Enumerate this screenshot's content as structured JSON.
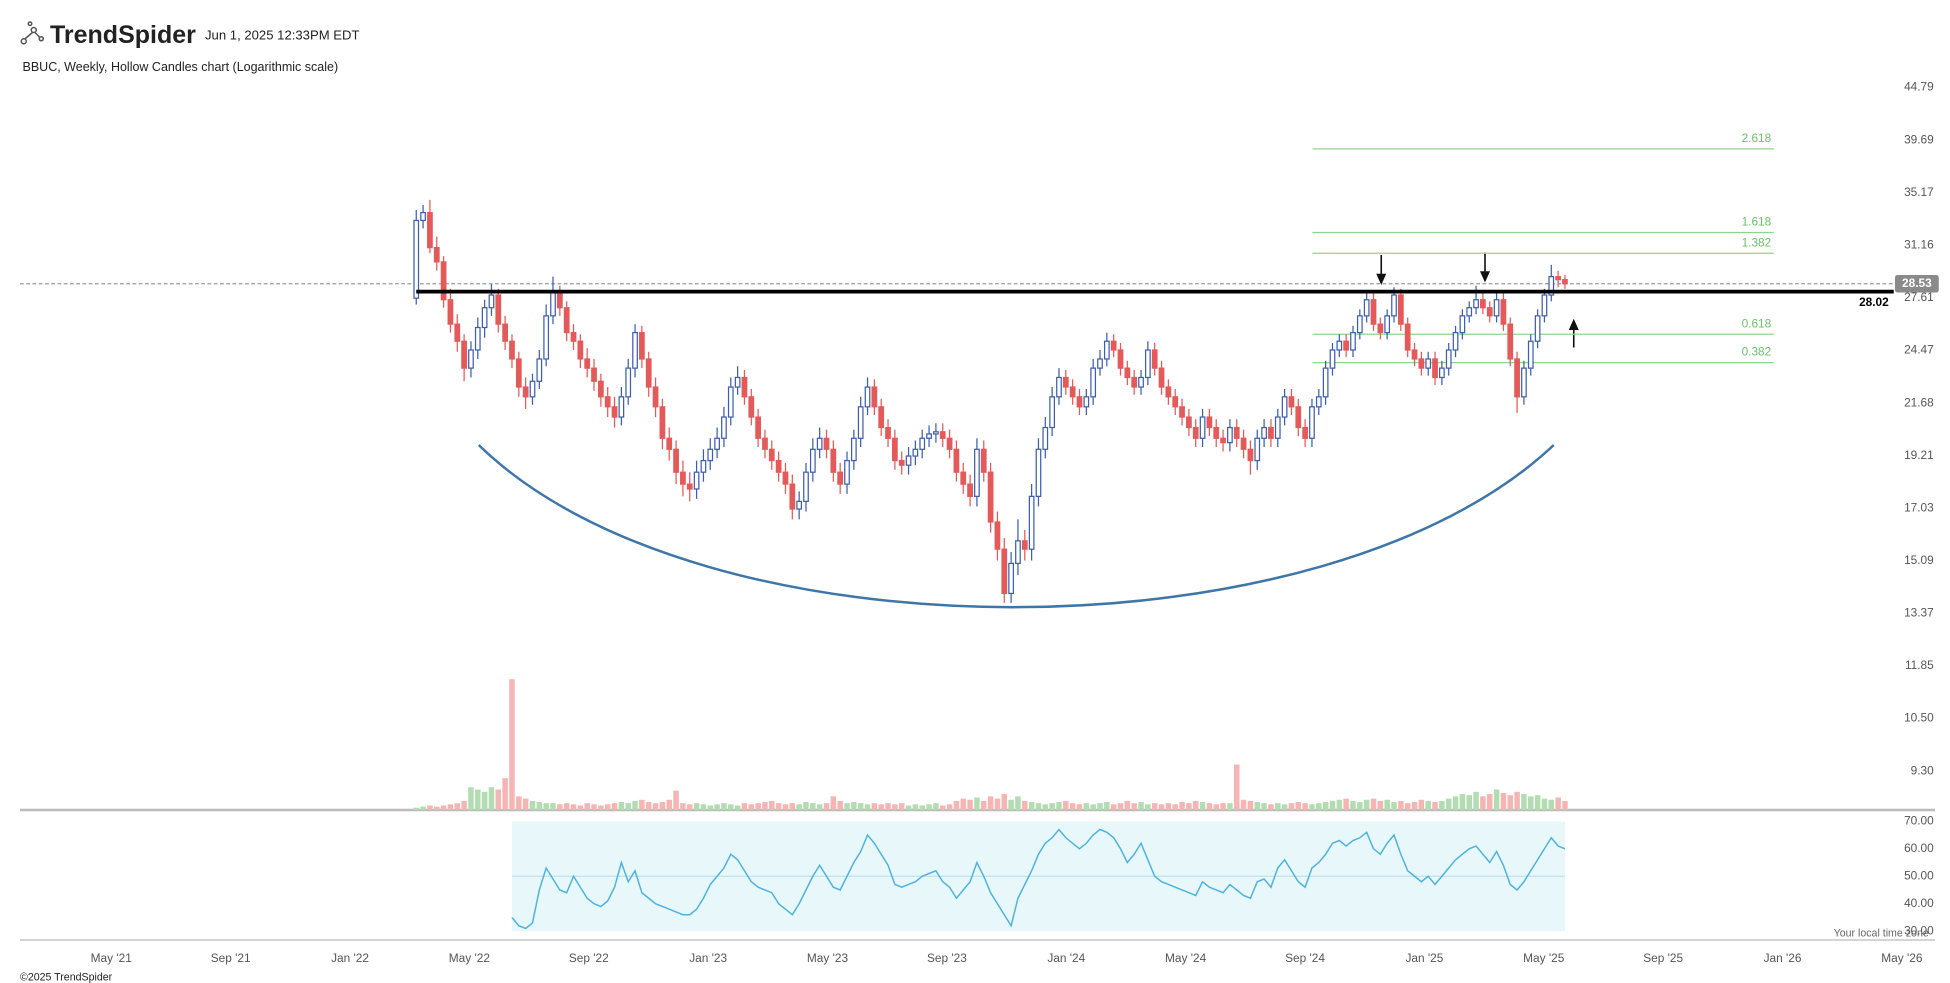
{
  "chart_data": {
    "type": "candlestick",
    "brand": "TrendSpider",
    "timestamp": "Jun 1, 2025 12:33PM EDT",
    "title": "BBUC, Weekly, Hollow Candles chart (Logarithmic scale)",
    "copyright": "©2025 TrendSpider",
    "timezone_note": "Your local time zone",
    "log_scale": true,
    "up_color": "#3f5fae",
    "down_color": "#e45a5a",
    "volume_up_color": "#b3dcb3",
    "volume_down_color": "#f5b5b5",
    "rsi_color": "#4fb3e0",
    "rsi_band_color": "#e8f7f9",
    "ylim": [
      8.51,
      46.1
    ],
    "yticks": [
      44.79,
      39.69,
      35.17,
      31.16,
      27.61,
      24.47,
      21.68,
      19.21,
      17.03,
      15.09,
      13.37,
      11.85,
      {
        "value": 10.5,
        "label": "10.50"
      },
      {
        "value": 9.3,
        "label": "9.30"
      }
    ],
    "rsi_ylim": [
      26.8,
      73.2
    ],
    "rsi_yticks": [
      {
        "value": 70,
        "label": "70.00"
      },
      {
        "value": 60,
        "label": "60.00"
      },
      {
        "value": 50,
        "label": "50.00"
      },
      {
        "value": 40,
        "label": "40.00"
      },
      {
        "value": 30,
        "label": "30.00"
      }
    ],
    "rsi_band": [
      30,
      70
    ],
    "rsi_midline": 50,
    "xticks": [
      "May '21",
      "Sep '21",
      "Jan '22",
      "May '22",
      "Sep '22",
      "Jan '23",
      "May '23",
      "Sep '23",
      "Jan '24",
      "May '24",
      "Sep '24",
      "Jan '25",
      "May '25",
      "Sep '25",
      "Jan '26",
      "May '26"
    ],
    "resistance": 28.02,
    "last_price": 28.53,
    "fib_levels": [
      {
        "level": 2.618,
        "price": 38.9
      },
      {
        "level": 1.618,
        "price": 32.1
      },
      {
        "level": 1.382,
        "price": 30.6
      },
      {
        "level": 0.618,
        "price": 25.4
      },
      {
        "level": 0.382,
        "price": 23.8
      }
    ],
    "candles": [
      [
        27.6,
        33.8,
        27.2,
        33.0
      ],
      [
        33.0,
        34.2,
        32.4,
        33.6
      ],
      [
        33.6,
        34.6,
        30.6,
        31.0
      ],
      [
        31.0,
        31.8,
        29.4,
        30.0
      ],
      [
        30.0,
        30.4,
        27.0,
        27.5
      ],
      [
        27.5,
        28.2,
        25.5,
        26.0
      ],
      [
        26.0,
        26.6,
        24.4,
        25.0
      ],
      [
        25.0,
        25.4,
        22.8,
        23.5
      ],
      [
        23.5,
        25.0,
        23.0,
        24.5
      ],
      [
        24.5,
        26.4,
        24.0,
        25.8
      ],
      [
        25.8,
        27.5,
        25.2,
        27.0
      ],
      [
        27.0,
        28.5,
        26.5,
        27.8
      ],
      [
        27.8,
        28.2,
        25.5,
        26.0
      ],
      [
        26.0,
        26.5,
        24.5,
        25.0
      ],
      [
        25.0,
        25.4,
        23.5,
        24.0
      ],
      [
        24.0,
        24.4,
        22.0,
        22.5
      ],
      [
        22.5,
        23.0,
        21.4,
        22.0
      ],
      [
        22.0,
        23.2,
        21.6,
        22.8
      ],
      [
        22.8,
        24.5,
        22.4,
        24.0
      ],
      [
        24.0,
        27.2,
        23.6,
        26.5
      ],
      [
        26.5,
        29.0,
        26.0,
        28.0
      ],
      [
        28.0,
        28.4,
        26.5,
        27.0
      ],
      [
        27.0,
        27.4,
        25.0,
        25.5
      ],
      [
        25.5,
        26.0,
        24.5,
        25.0
      ],
      [
        25.0,
        25.4,
        23.5,
        24.0
      ],
      [
        24.0,
        24.6,
        23.0,
        23.5
      ],
      [
        23.5,
        24.0,
        22.3,
        22.8
      ],
      [
        22.8,
        23.2,
        21.5,
        22.0
      ],
      [
        22.0,
        22.5,
        21.0,
        21.5
      ],
      [
        21.5,
        22.0,
        20.5,
        21.0
      ],
      [
        21.0,
        22.5,
        20.6,
        22.0
      ],
      [
        22.0,
        24.0,
        21.6,
        23.5
      ],
      [
        23.5,
        26.0,
        23.0,
        25.5
      ],
      [
        25.5,
        25.9,
        23.5,
        24.0
      ],
      [
        24.0,
        24.4,
        22.0,
        22.5
      ],
      [
        22.5,
        23.0,
        21.0,
        21.5
      ],
      [
        21.5,
        21.9,
        19.5,
        20.0
      ],
      [
        20.0,
        20.5,
        19.0,
        19.5
      ],
      [
        19.5,
        19.9,
        18.0,
        18.5
      ],
      [
        18.5,
        19.0,
        17.5,
        18.0
      ],
      [
        18.0,
        18.5,
        17.3,
        17.8
      ],
      [
        17.8,
        19.0,
        17.4,
        18.5
      ],
      [
        18.5,
        19.5,
        18.1,
        19.0
      ],
      [
        19.0,
        20.0,
        18.6,
        19.5
      ],
      [
        19.5,
        20.5,
        19.1,
        20.0
      ],
      [
        20.0,
        21.5,
        19.6,
        21.0
      ],
      [
        21.0,
        23.0,
        20.6,
        22.5
      ],
      [
        22.5,
        23.6,
        22.1,
        23.0
      ],
      [
        23.0,
        23.4,
        21.6,
        22.0
      ],
      [
        22.0,
        22.4,
        20.6,
        21.0
      ],
      [
        21.0,
        21.4,
        19.6,
        20.0
      ],
      [
        20.0,
        20.4,
        19.1,
        19.5
      ],
      [
        19.5,
        19.9,
        18.6,
        19.0
      ],
      [
        19.0,
        19.4,
        18.1,
        18.5
      ],
      [
        18.5,
        18.9,
        17.6,
        18.0
      ],
      [
        18.0,
        18.4,
        16.6,
        17.0
      ],
      [
        17.0,
        17.7,
        16.6,
        17.3
      ],
      [
        17.3,
        18.9,
        16.9,
        18.5
      ],
      [
        18.5,
        20.0,
        18.1,
        19.5
      ],
      [
        19.5,
        20.5,
        19.1,
        20.0
      ],
      [
        20.0,
        20.4,
        19.1,
        19.5
      ],
      [
        19.5,
        19.9,
        18.1,
        18.5
      ],
      [
        18.5,
        18.9,
        17.6,
        18.0
      ],
      [
        18.0,
        19.4,
        17.6,
        19.0
      ],
      [
        19.0,
        20.4,
        18.6,
        20.0
      ],
      [
        20.0,
        22.0,
        19.6,
        21.5
      ],
      [
        21.5,
        23.0,
        21.1,
        22.5
      ],
      [
        22.5,
        22.9,
        21.1,
        21.5
      ],
      [
        21.5,
        21.9,
        20.1,
        20.5
      ],
      [
        20.5,
        20.9,
        19.6,
        20.0
      ],
      [
        20.0,
        20.4,
        18.6,
        19.0
      ],
      [
        19.0,
        19.4,
        18.4,
        18.8
      ],
      [
        18.8,
        19.6,
        18.4,
        19.2
      ],
      [
        19.2,
        19.9,
        18.8,
        19.5
      ],
      [
        19.5,
        20.4,
        19.1,
        20.0
      ],
      [
        20.0,
        20.6,
        19.6,
        20.2
      ],
      [
        20.2,
        20.7,
        19.8,
        20.3
      ],
      [
        20.3,
        20.7,
        19.6,
        20.0
      ],
      [
        20.0,
        20.4,
        19.1,
        19.5
      ],
      [
        19.5,
        19.9,
        18.1,
        18.5
      ],
      [
        18.5,
        18.9,
        17.6,
        18.0
      ],
      [
        18.0,
        18.4,
        17.1,
        17.5
      ],
      [
        17.5,
        20.0,
        17.1,
        19.5
      ],
      [
        19.5,
        19.9,
        18.1,
        18.5
      ],
      [
        18.5,
        18.9,
        16.1,
        16.5
      ],
      [
        16.5,
        16.9,
        15.1,
        15.5
      ],
      [
        15.5,
        15.9,
        13.7,
        14.0
      ],
      [
        14.0,
        15.4,
        13.7,
        15.0
      ],
      [
        15.0,
        16.6,
        14.6,
        15.8
      ],
      [
        15.8,
        16.2,
        15.1,
        15.5
      ],
      [
        15.5,
        18.0,
        15.1,
        17.5
      ],
      [
        17.5,
        20.0,
        17.1,
        19.5
      ],
      [
        19.5,
        21.0,
        19.1,
        20.5
      ],
      [
        20.5,
        22.5,
        20.1,
        22.0
      ],
      [
        22.0,
        23.5,
        21.6,
        23.0
      ],
      [
        23.0,
        23.4,
        22.1,
        22.5
      ],
      [
        22.5,
        22.9,
        21.6,
        22.0
      ],
      [
        22.0,
        22.4,
        21.1,
        21.5
      ],
      [
        21.5,
        22.4,
        21.1,
        22.0
      ],
      [
        22.0,
        24.0,
        21.6,
        23.5
      ],
      [
        23.5,
        24.5,
        23.1,
        24.0
      ],
      [
        24.0,
        25.5,
        23.6,
        25.0
      ],
      [
        25.0,
        25.4,
        24.1,
        24.5
      ],
      [
        24.5,
        24.9,
        23.1,
        23.5
      ],
      [
        23.5,
        23.9,
        22.6,
        23.0
      ],
      [
        23.0,
        23.4,
        22.1,
        22.5
      ],
      [
        22.5,
        23.4,
        22.1,
        23.0
      ],
      [
        23.0,
        25.0,
        22.6,
        24.5
      ],
      [
        24.5,
        24.9,
        23.1,
        23.5
      ],
      [
        23.5,
        23.9,
        22.1,
        22.5
      ],
      [
        22.5,
        22.9,
        21.6,
        22.0
      ],
      [
        22.0,
        22.4,
        21.1,
        21.5
      ],
      [
        21.5,
        21.9,
        20.6,
        21.0
      ],
      [
        21.0,
        21.4,
        20.1,
        20.5
      ],
      [
        20.5,
        20.9,
        19.6,
        20.0
      ],
      [
        20.0,
        21.4,
        19.6,
        21.0
      ],
      [
        21.0,
        21.4,
        20.1,
        20.5
      ],
      [
        20.5,
        20.9,
        19.6,
        20.0
      ],
      [
        20.0,
        20.4,
        19.4,
        19.8
      ],
      [
        19.8,
        20.9,
        19.4,
        20.5
      ],
      [
        20.5,
        20.9,
        19.6,
        20.0
      ],
      [
        20.0,
        20.4,
        19.1,
        19.5
      ],
      [
        19.5,
        19.9,
        18.4,
        19.0
      ],
      [
        19.0,
        20.4,
        18.6,
        20.0
      ],
      [
        20.0,
        20.9,
        19.6,
        20.5
      ],
      [
        20.5,
        20.9,
        19.6,
        20.0
      ],
      [
        20.0,
        21.4,
        19.6,
        21.0
      ],
      [
        21.0,
        22.4,
        20.6,
        22.0
      ],
      [
        22.0,
        22.4,
        21.1,
        21.5
      ],
      [
        21.5,
        21.9,
        20.1,
        20.5
      ],
      [
        20.5,
        20.9,
        19.6,
        20.0
      ],
      [
        20.0,
        21.9,
        19.6,
        21.5
      ],
      [
        21.5,
        22.4,
        21.1,
        22.0
      ],
      [
        22.0,
        23.9,
        21.6,
        23.5
      ],
      [
        23.5,
        24.9,
        23.1,
        24.5
      ],
      [
        24.5,
        25.4,
        24.1,
        25.0
      ],
      [
        25.0,
        25.4,
        24.1,
        24.5
      ],
      [
        24.5,
        25.9,
        24.1,
        25.5
      ],
      [
        25.5,
        26.9,
        25.1,
        26.5
      ],
      [
        26.5,
        28.0,
        26.1,
        27.5
      ],
      [
        27.5,
        27.9,
        25.6,
        26.0
      ],
      [
        26.0,
        26.4,
        25.1,
        25.5
      ],
      [
        25.5,
        26.9,
        25.1,
        26.5
      ],
      [
        26.5,
        28.3,
        26.1,
        27.8
      ],
      [
        27.8,
        28.2,
        25.6,
        26.0
      ],
      [
        26.0,
        26.4,
        24.1,
        24.5
      ],
      [
        24.5,
        24.9,
        23.6,
        24.0
      ],
      [
        24.0,
        24.4,
        23.1,
        23.5
      ],
      [
        23.5,
        24.4,
        23.1,
        24.0
      ],
      [
        24.0,
        24.4,
        22.6,
        23.0
      ],
      [
        23.0,
        23.9,
        22.6,
        23.5
      ],
      [
        23.5,
        24.9,
        23.1,
        24.5
      ],
      [
        24.5,
        25.9,
        24.1,
        25.5
      ],
      [
        25.5,
        26.9,
        25.1,
        26.5
      ],
      [
        26.5,
        27.4,
        26.1,
        27.0
      ],
      [
        27.0,
        28.4,
        26.6,
        27.5
      ],
      [
        27.5,
        27.9,
        26.6,
        27.0
      ],
      [
        27.0,
        27.4,
        26.1,
        26.5
      ],
      [
        26.5,
        27.9,
        26.1,
        27.5
      ],
      [
        27.5,
        27.9,
        25.6,
        26.0
      ],
      [
        26.0,
        26.4,
        23.6,
        24.0
      ],
      [
        24.0,
        24.4,
        21.2,
        22.0
      ],
      [
        22.0,
        23.9,
        21.6,
        23.5
      ],
      [
        23.5,
        25.4,
        23.1,
        25.0
      ],
      [
        25.0,
        26.9,
        24.6,
        26.5
      ],
      [
        26.5,
        28.2,
        26.1,
        27.8
      ],
      [
        27.8,
        29.8,
        27.4,
        29.0
      ],
      [
        29.0,
        29.4,
        28.3,
        28.8
      ],
      [
        28.8,
        29.1,
        28.2,
        28.53
      ]
    ],
    "volume": [
      2,
      3,
      4,
      3,
      4,
      5,
      6,
      8,
      20,
      18,
      16,
      20,
      18,
      28,
      115,
      12,
      10,
      8,
      7,
      6,
      6,
      5,
      6,
      5,
      4,
      6,
      5,
      4,
      5,
      6,
      7,
      6,
      8,
      9,
      7,
      6,
      7,
      9,
      17,
      6,
      5,
      6,
      5,
      4,
      5,
      6,
      5,
      4,
      6,
      5,
      6,
      7,
      8,
      6,
      5,
      6,
      5,
      7,
      6,
      5,
      6,
      12,
      8,
      6,
      7,
      6,
      5,
      6,
      5,
      6,
      5,
      6,
      4,
      5,
      4,
      5,
      6,
      4,
      5,
      8,
      10,
      9,
      11,
      8,
      12,
      10,
      14,
      9,
      12,
      8,
      7,
      6,
      5,
      6,
      7,
      8,
      6,
      5,
      6,
      5,
      6,
      7,
      5,
      6,
      8,
      6,
      7,
      5,
      6,
      5,
      6,
      5,
      7,
      6,
      8,
      7,
      6,
      5,
      6,
      6,
      40,
      9,
      8,
      7,
      6,
      5,
      6,
      5,
      6,
      7,
      6,
      5,
      6,
      7,
      8,
      9,
      10,
      8,
      7,
      9,
      10,
      8,
      9,
      7,
      8,
      6,
      7,
      9,
      8,
      7,
      8,
      10,
      12,
      14,
      13,
      16,
      12,
      14,
      18,
      15,
      13,
      16,
      14,
      12,
      13,
      10,
      9,
      11,
      8
    ],
    "rsi": [
      null,
      null,
      null,
      null,
      null,
      null,
      null,
      null,
      null,
      null,
      null,
      null,
      null,
      null,
      35,
      32,
      31,
      33,
      45,
      53,
      49,
      45,
      44,
      50,
      46,
      42,
      40,
      39,
      41,
      46,
      55,
      48,
      52,
      44,
      42,
      40,
      39,
      38,
      37,
      36,
      36,
      38,
      42,
      47,
      50,
      53,
      58,
      56,
      52,
      48,
      46,
      45,
      44,
      40,
      38,
      36,
      40,
      45,
      50,
      54,
      50,
      46,
      45,
      50,
      55,
      59,
      65,
      62,
      58,
      54,
      47,
      46,
      47,
      48,
      50,
      51,
      52,
      48,
      46,
      42,
      45,
      48,
      55,
      50,
      44,
      40,
      36,
      32,
      42,
      47,
      52,
      58,
      62,
      64,
      67,
      64,
      62,
      60,
      62,
      65,
      67,
      66,
      64,
      60,
      55,
      58,
      62,
      56,
      50,
      48,
      47,
      46,
      45,
      44,
      43,
      48,
      46,
      45,
      44,
      47,
      45,
      43,
      42,
      48,
      49,
      46,
      53,
      56,
      52,
      48,
      46,
      53,
      55,
      58,
      62,
      63,
      61,
      63,
      64,
      66,
      60,
      58,
      62,
      65,
      58,
      52,
      50,
      48,
      50,
      47,
      50,
      53,
      56,
      58,
      60,
      61,
      58,
      55,
      59,
      54,
      47,
      45,
      48,
      52,
      56,
      60,
      64,
      61,
      60
    ]
  }
}
